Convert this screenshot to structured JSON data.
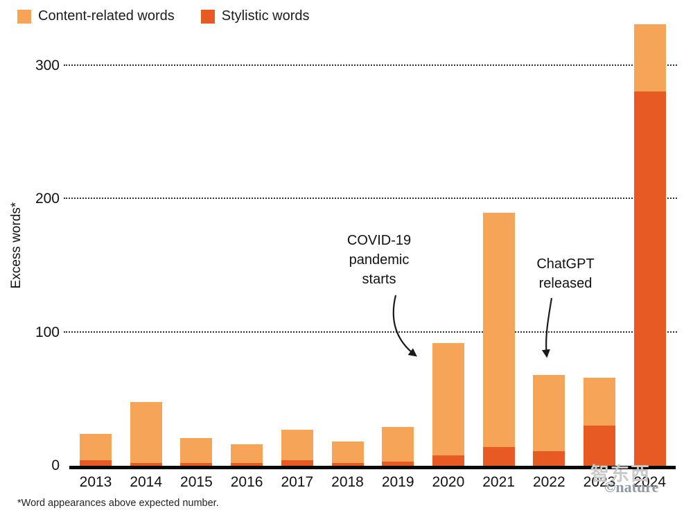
{
  "legend": {
    "items": [
      {
        "label": "Content-related words",
        "color": "#F6A458"
      },
      {
        "label": "Stylistic words",
        "color": "#E85A23"
      }
    ]
  },
  "chart_data": {
    "type": "bar",
    "stacked": true,
    "title": "",
    "xlabel": "",
    "ylabel": "Excess words*",
    "categories": [
      "2013",
      "2014",
      "2015",
      "2016",
      "2017",
      "2018",
      "2019",
      "2020",
      "2021",
      "2022",
      "2023",
      "2024"
    ],
    "series": [
      {
        "name": "Stylistic words",
        "color": "#E85A23",
        "values": [
          4,
          2,
          2,
          2,
          4,
          2,
          3,
          8,
          14,
          11,
          30,
          281
        ]
      },
      {
        "name": "Content-related words",
        "color": "#F6A458",
        "values": [
          20,
          46,
          19,
          14,
          23,
          16,
          26,
          84,
          176,
          57,
          36,
          50
        ]
      }
    ],
    "totals": [
      24,
      48,
      21,
      16,
      27,
      18,
      29,
      92,
      190,
      68,
      66,
      331
    ],
    "yticks": [
      0,
      100,
      200,
      300
    ],
    "ylim": [
      0,
      334
    ],
    "grid": "horizontal-dotted",
    "legend_position": "top-left"
  },
  "annotations": [
    {
      "id": "covid",
      "lines": [
        "COVID-19",
        "pandemic",
        "starts"
      ],
      "target_year": "2020"
    },
    {
      "id": "chatgpt",
      "lines": [
        "ChatGPT",
        "released"
      ],
      "target_year": "2022"
    }
  ],
  "footnote": "*Word appearances above expected number.",
  "watermark": {
    "text_cn": "智东西",
    "text_nature": "©nature"
  }
}
